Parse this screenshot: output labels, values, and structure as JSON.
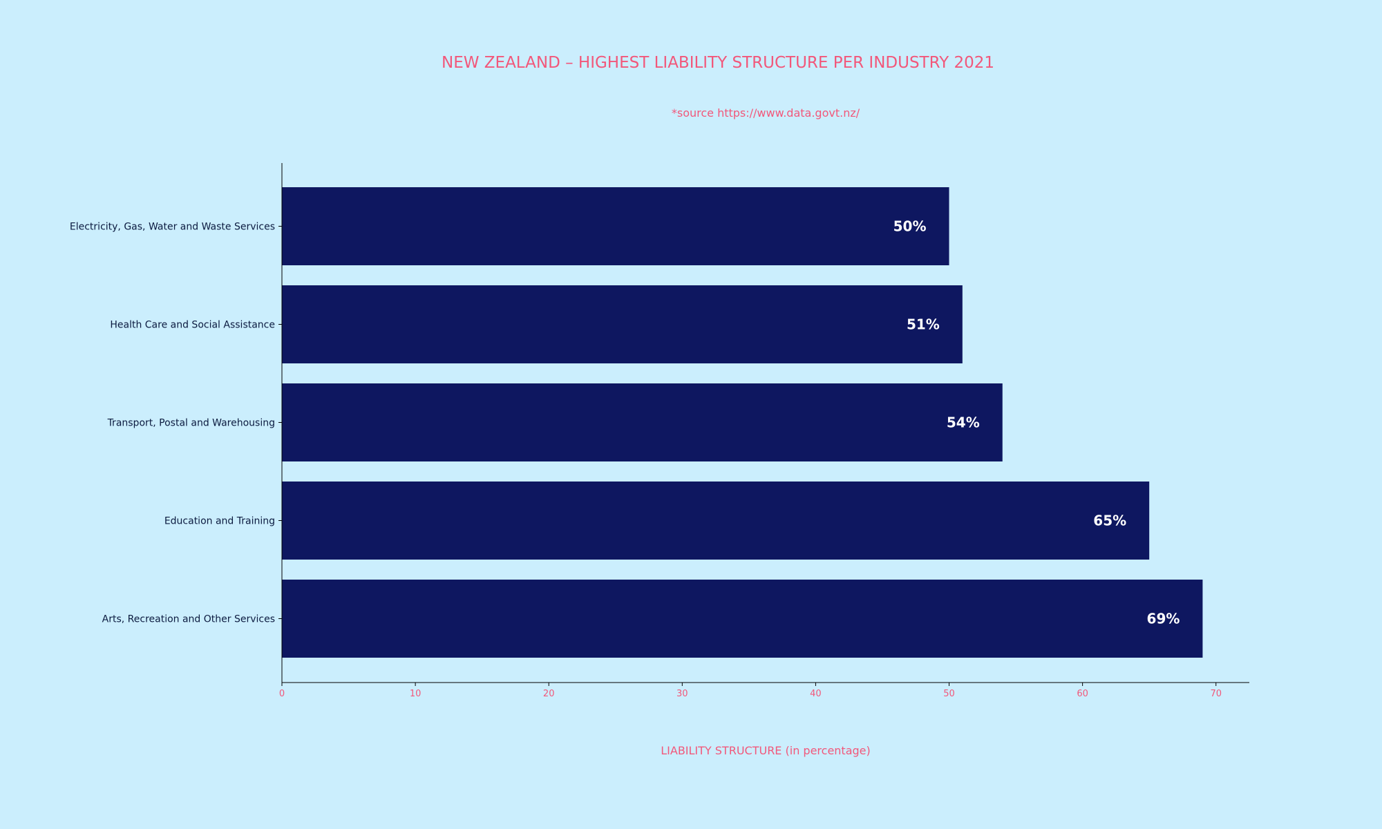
{
  "chart_data": {
    "type": "bar",
    "orientation": "horizontal",
    "title": "NEW ZEALAND – HIGHEST LIABILITY STRUCTURE PER INDUSTRY 2021",
    "subtitle": "*source https://www.data.govt.nz/",
    "xlabel": "LIABILITY STRUCTURE (in percentage)",
    "ylabel": "",
    "categories": [
      "Electricity, Gas, Water and Waste Services",
      "Health Care and Social Assistance",
      "Transport, Postal and Warehousing",
      "Education and Training",
      "Arts, Recreation and Other Services"
    ],
    "values": [
      50,
      51,
      54,
      65,
      69
    ],
    "data_labels": [
      "50%",
      "51%",
      "54%",
      "65%",
      "69%"
    ],
    "xlim": [
      0,
      72.5
    ],
    "xticks": [
      0,
      10,
      20,
      30,
      40,
      50,
      60,
      70
    ],
    "xtick_labels": [
      "0",
      "10",
      "20",
      "30",
      "40",
      "50",
      "60",
      "70"
    ],
    "grid": false,
    "legend": "none",
    "colors": {
      "background": "#cbeefd",
      "bar": "#0e1760",
      "accent_text": "#f2577a",
      "category_text": "#0b1a3f",
      "data_label_text": "#ffffff",
      "axis_line": "#000000"
    }
  }
}
